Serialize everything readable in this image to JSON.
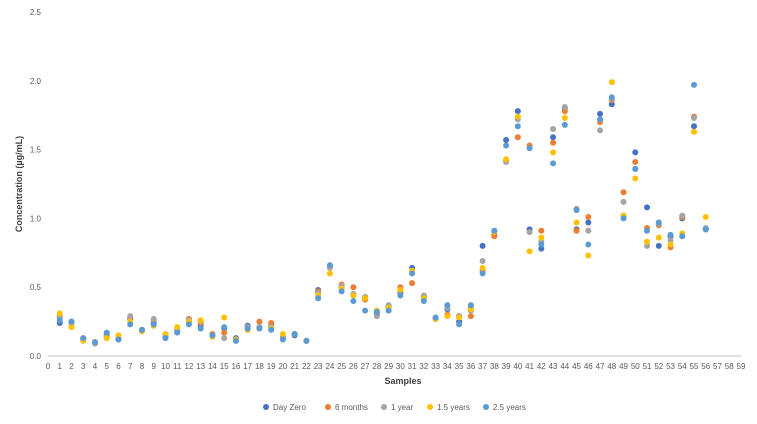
{
  "chart_data": {
    "type": "scatter",
    "xlabel": "Samples",
    "ylabel": "Concentration (µg/mL)",
    "xlim": [
      0,
      59
    ],
    "ylim": [
      0,
      2.5
    ],
    "x_ticks": [
      0,
      1,
      2,
      3,
      4,
      5,
      6,
      7,
      8,
      9,
      10,
      11,
      12,
      13,
      14,
      15,
      16,
      17,
      18,
      19,
      20,
      21,
      22,
      23,
      24,
      25,
      26,
      27,
      28,
      29,
      30,
      31,
      32,
      33,
      34,
      35,
      36,
      37,
      38,
      39,
      40,
      41,
      42,
      43,
      44,
      45,
      46,
      47,
      48,
      49,
      50,
      51,
      52,
      53,
      54,
      55,
      56,
      57,
      58,
      59
    ],
    "y_ticks": [
      "0.0",
      "0.5",
      "1.0",
      "1.5",
      "2.0",
      "2.5"
    ],
    "grid": false,
    "legend_position": "bottom",
    "series": [
      {
        "name": "Day Zero",
        "color": "#4472C4",
        "values": [
          0.24,
          0.25,
          0.12,
          0.1,
          0.15,
          0.12,
          0.27,
          0.18,
          0.24,
          0.14,
          0.18,
          0.25,
          0.22,
          0.15,
          0.2,
          0.13,
          0.22,
          0.21,
          0.22,
          0.13,
          0.15,
          0.11,
          0.48,
          0.65,
          0.5,
          0.45,
          0.42,
          0.3,
          0.36,
          0.46,
          0.64,
          0.42,
          0.27,
          0.34,
          0.25,
          0.36,
          0.8,
          0.88,
          1.57,
          1.78,
          0.92,
          0.78,
          1.59,
          1.8,
          0.92,
          0.97,
          1.76,
          1.83,
          1.02,
          1.48,
          1.08,
          0.8,
          0.87,
          1.0,
          1.67,
          0.92
        ]
      },
      {
        "name": "6 months",
        "color": "#ED7D31",
        "values": [
          0.28,
          0.24,
          0.13,
          0.1,
          0.14,
          0.13,
          0.28,
          0.19,
          0.26,
          0.15,
          0.19,
          0.27,
          0.24,
          0.16,
          0.17,
          0.12,
          0.21,
          0.25,
          0.24,
          0.14,
          0.16,
          0.11,
          0.47,
          0.65,
          0.52,
          0.5,
          0.41,
          0.31,
          0.35,
          0.5,
          0.53,
          0.43,
          0.27,
          0.3,
          0.29,
          0.29,
          0.62,
          0.87,
          1.42,
          1.59,
          1.53,
          0.91,
          1.55,
          1.78,
          0.91,
          1.01,
          1.7,
          1.86,
          1.19,
          1.41,
          0.93,
          0.95,
          0.79,
          1.01,
          1.74,
          0.92
        ]
      },
      {
        "name": "1 year",
        "color": "#A5A5A5",
        "values": [
          0.29,
          0.24,
          0.12,
          0.09,
          0.16,
          0.12,
          0.29,
          0.19,
          0.27,
          0.15,
          0.19,
          0.26,
          0.25,
          0.15,
          0.13,
          0.11,
          0.21,
          0.21,
          0.21,
          0.13,
          0.16,
          0.11,
          0.46,
          0.64,
          0.51,
          0.45,
          0.43,
          0.29,
          0.37,
          0.48,
          0.62,
          0.44,
          0.27,
          0.35,
          0.29,
          0.33,
          0.69,
          0.91,
          1.41,
          1.72,
          0.9,
          0.83,
          1.65,
          1.81,
          1.07,
          0.91,
          1.64,
          1.87,
          1.12,
          1.36,
          0.8,
          0.96,
          0.84,
          1.02,
          1.73,
          0.93
        ]
      },
      {
        "name": "1.5 years",
        "color": "#FFC000",
        "values": [
          0.31,
          0.21,
          0.11,
          0.1,
          0.13,
          0.15,
          0.25,
          0.18,
          0.22,
          0.16,
          0.21,
          0.25,
          0.26,
          0.14,
          0.28,
          0.12,
          0.19,
          0.2,
          0.2,
          0.16,
          0.16,
          0.11,
          0.44,
          0.6,
          0.49,
          0.44,
          0.42,
          0.33,
          0.35,
          0.48,
          0.62,
          0.42,
          0.27,
          0.29,
          0.28,
          0.34,
          0.64,
          0.9,
          1.43,
          1.74,
          0.76,
          0.86,
          1.48,
          1.73,
          0.97,
          0.73,
          1.72,
          1.99,
          1.02,
          1.29,
          0.83,
          0.86,
          0.81,
          0.89,
          1.63,
          1.01
        ]
      },
      {
        "name": "2.5 years",
        "color": "#5B9BD5",
        "values": [
          0.26,
          0.25,
          0.13,
          0.1,
          0.17,
          0.12,
          0.23,
          0.19,
          0.23,
          0.13,
          0.17,
          0.23,
          0.2,
          0.15,
          0.21,
          0.11,
          0.2,
          0.2,
          0.19,
          0.12,
          0.16,
          0.11,
          0.42,
          0.66,
          0.47,
          0.4,
          0.33,
          0.32,
          0.33,
          0.44,
          0.6,
          0.4,
          0.28,
          0.37,
          0.23,
          0.37,
          0.6,
          0.91,
          1.53,
          1.67,
          1.51,
          0.81,
          1.4,
          1.68,
          1.06,
          0.81,
          1.72,
          1.88,
          1.0,
          1.36,
          0.91,
          0.97,
          0.88,
          0.87,
          1.97,
          0.92
        ]
      }
    ]
  }
}
